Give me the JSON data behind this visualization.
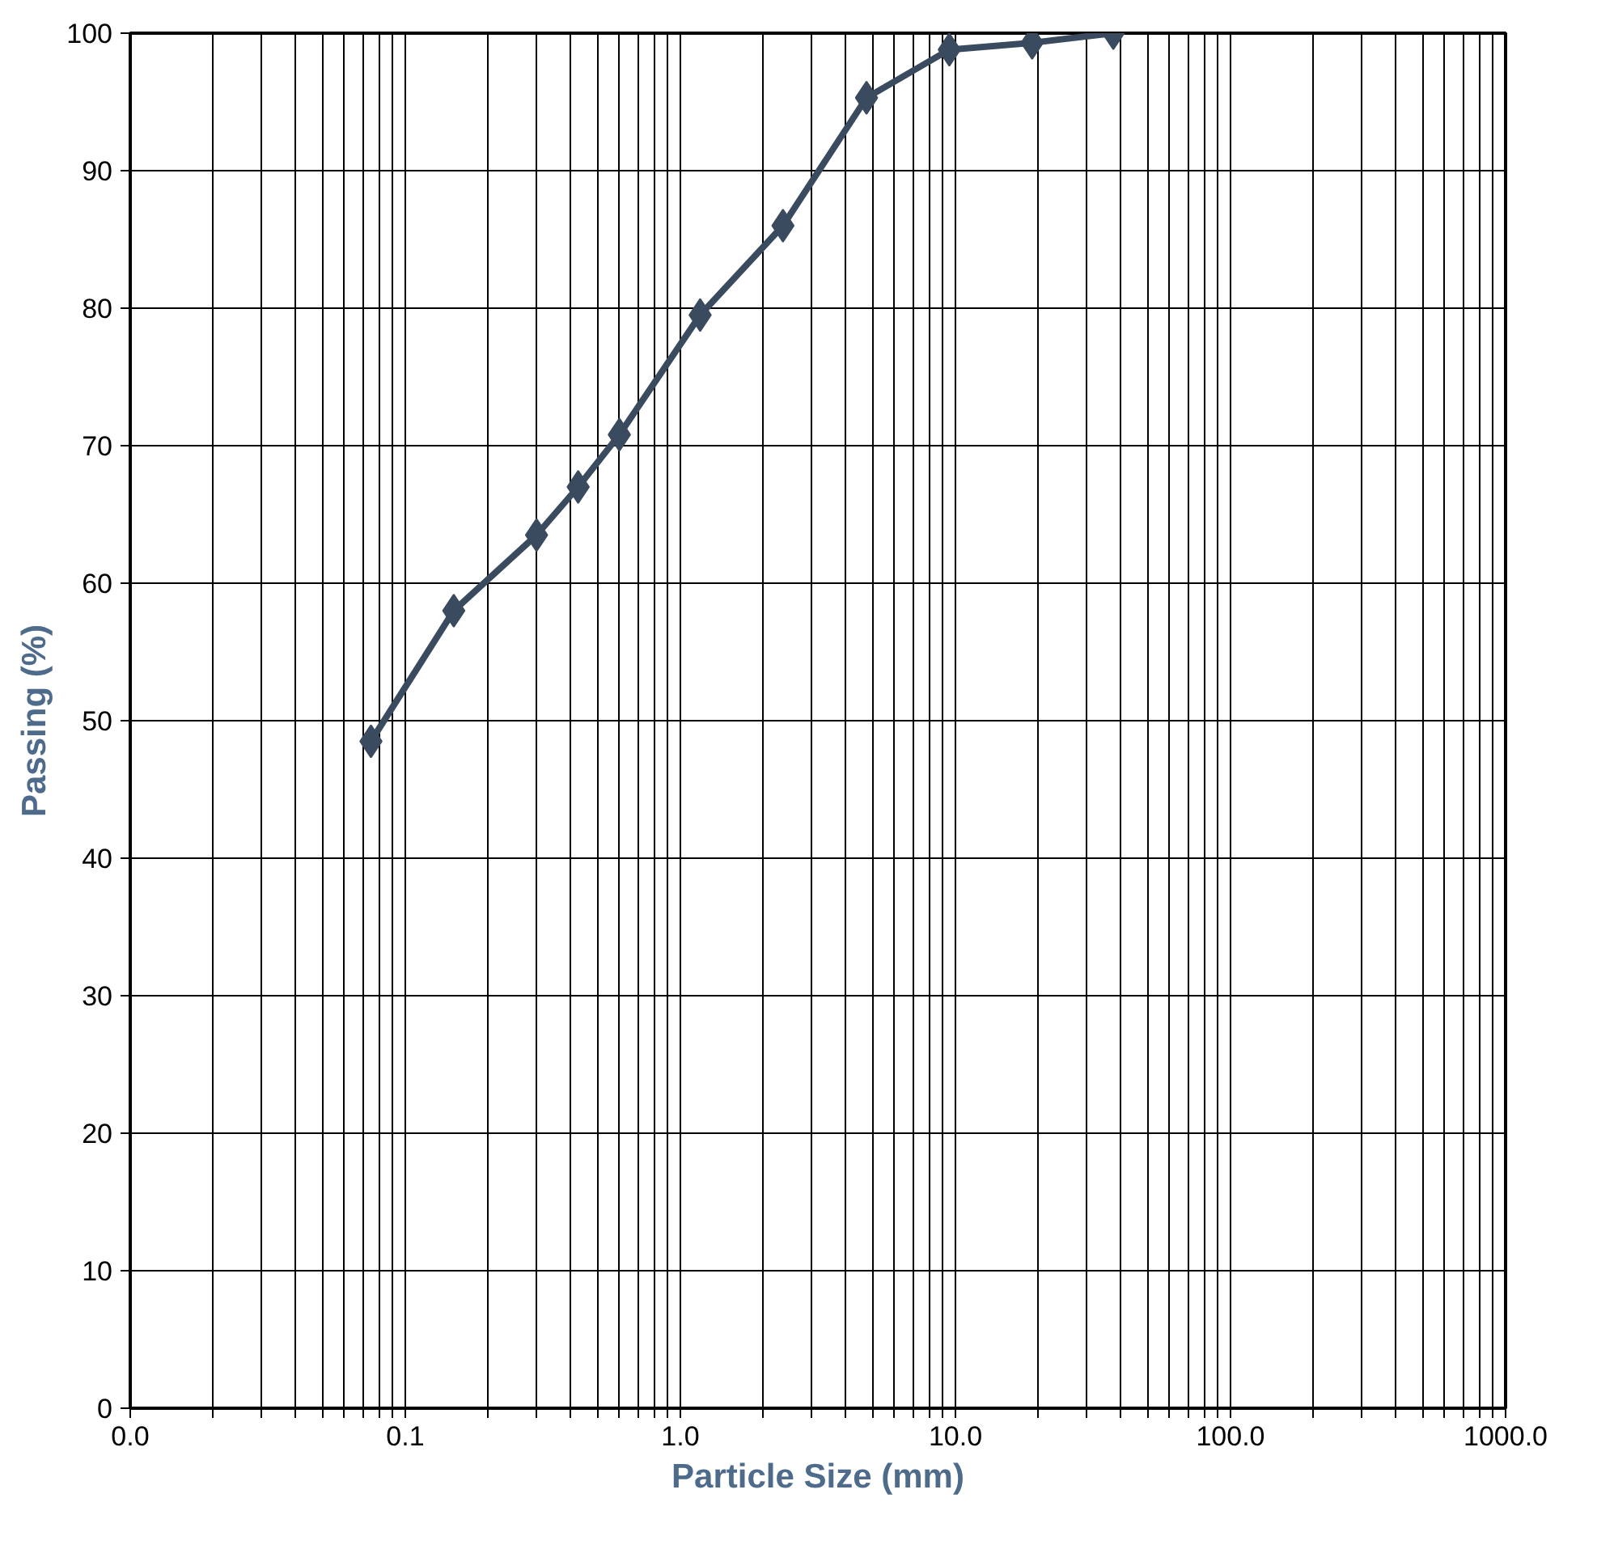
{
  "chart_data": {
    "type": "line",
    "xlabel": "Particle Size (mm)",
    "ylabel": "Passing (%)",
    "log": "x",
    "grid": true,
    "marker": "diamond",
    "line_style": "solid",
    "xlim": [
      0.01,
      1000
    ],
    "ylim": [
      0,
      100
    ],
    "xticks": [
      {
        "value": 0.01,
        "label": "0.0"
      },
      {
        "value": 0.02,
        "label": null
      },
      {
        "value": 0.03,
        "label": null
      },
      {
        "value": 0.04,
        "label": null
      },
      {
        "value": 0.05,
        "label": null
      },
      {
        "value": 0.06,
        "label": null
      },
      {
        "value": 0.07,
        "label": null
      },
      {
        "value": 0.08,
        "label": null
      },
      {
        "value": 0.09,
        "label": null
      },
      {
        "value": 0.1,
        "label": "0.1"
      },
      {
        "value": 0.2,
        "label": null
      },
      {
        "value": 0.3,
        "label": null
      },
      {
        "value": 0.4,
        "label": null
      },
      {
        "value": 0.5,
        "label": null
      },
      {
        "value": 0.6,
        "label": null
      },
      {
        "value": 0.7,
        "label": null
      },
      {
        "value": 0.8,
        "label": null
      },
      {
        "value": 0.9,
        "label": null
      },
      {
        "value": 1,
        "label": "1.0"
      },
      {
        "value": 2,
        "label": null
      },
      {
        "value": 3,
        "label": null
      },
      {
        "value": 4,
        "label": null
      },
      {
        "value": 5,
        "label": null
      },
      {
        "value": 6,
        "label": null
      },
      {
        "value": 7,
        "label": null
      },
      {
        "value": 8,
        "label": null
      },
      {
        "value": 9,
        "label": null
      },
      {
        "value": 10,
        "label": "10.0"
      },
      {
        "value": 20,
        "label": null
      },
      {
        "value": 30,
        "label": null
      },
      {
        "value": 40,
        "label": null
      },
      {
        "value": 50,
        "label": null
      },
      {
        "value": 60,
        "label": null
      },
      {
        "value": 70,
        "label": null
      },
      {
        "value": 80,
        "label": null
      },
      {
        "value": 90,
        "label": null
      },
      {
        "value": 100,
        "label": "100.0"
      },
      {
        "value": 200,
        "label": null
      },
      {
        "value": 300,
        "label": null
      },
      {
        "value": 400,
        "label": null
      },
      {
        "value": 500,
        "label": null
      },
      {
        "value": 600,
        "label": null
      },
      {
        "value": 700,
        "label": null
      },
      {
        "value": 800,
        "label": null
      },
      {
        "value": 900,
        "label": null
      },
      {
        "value": 1000,
        "label": "1000.0"
      }
    ],
    "yticks": [
      0,
      10,
      20,
      30,
      40,
      50,
      60,
      70,
      80,
      90,
      100
    ],
    "x": [
      0.075,
      0.15,
      0.3,
      0.425,
      0.6,
      1.18,
      2.36,
      4.75,
      9.5,
      19,
      37.5
    ],
    "series": [
      {
        "color": "#3b4b5f",
        "values": [
          48.5,
          58,
          63.5,
          67,
          70.8,
          79.5,
          86,
          95.3,
          98.8,
          99.3,
          100
        ]
      }
    ]
  }
}
